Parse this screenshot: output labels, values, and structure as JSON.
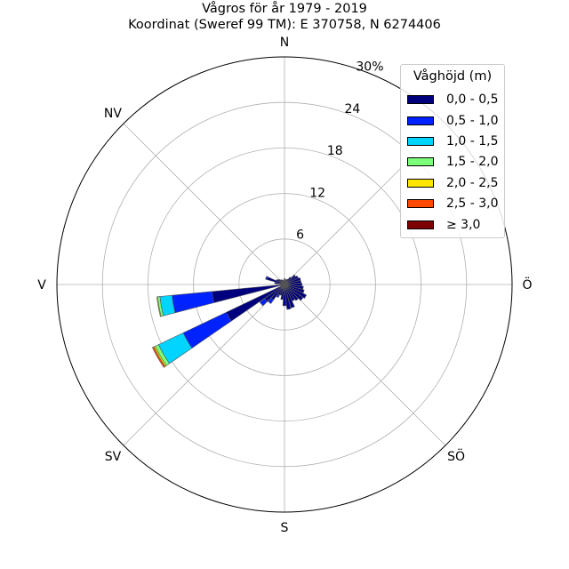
{
  "title": {
    "line1": "Vågros för år 1979 - 2019",
    "line2": "Koordinat (Sweref 99 TM): E 370758, N 6274406"
  },
  "colors": {
    "grid": "#b0b0b0",
    "bar_edge": "#555555"
  },
  "chart_data": {
    "type": "windrose",
    "title": "Vågros för år 1979 - 2019",
    "subtitle": "Koordinat (Sweref 99 TM): E 370758, N 6274406",
    "direction_labels": [
      "N",
      "Ö",
      "S",
      "V",
      "NV",
      "SÖ",
      "SV"
    ],
    "radial_ticks": [
      "6",
      "12",
      "18",
      "24",
      "30%"
    ],
    "radial_tick_values": [
      6,
      12,
      18,
      24,
      30
    ],
    "rmax": 30,
    "legend_title": "Våghöjd (m)",
    "legend_placement": "top-right",
    "bins": [
      {
        "label": "0,0 - 0,5",
        "color": "#00007f"
      },
      {
        "label": "0,5 - 1,0",
        "color": "#0022ff"
      },
      {
        "label": "1,0 - 1,5",
        "color": "#00d4ff"
      },
      {
        "label": "1,5 - 2,0",
        "color": "#7cff79"
      },
      {
        "label": "2,0 - 2,5",
        "color": "#ffe600"
      },
      {
        "label": "2,5 - 3,0",
        "color": "#ff4800"
      },
      {
        "label": "≥ 3,0",
        "color": "#7f0000"
      }
    ],
    "sectors": [
      {
        "direction": 0,
        "values": [
          0.8,
          0,
          0,
          0,
          0,
          0,
          0
        ]
      },
      {
        "direction": 10,
        "values": [
          0.6,
          0,
          0,
          0,
          0,
          0,
          0
        ]
      },
      {
        "direction": 20,
        "values": [
          0.7,
          0,
          0,
          0,
          0,
          0,
          0
        ]
      },
      {
        "direction": 30,
        "values": [
          0.8,
          0,
          0,
          0,
          0,
          0,
          0
        ]
      },
      {
        "direction": 40,
        "values": [
          1.2,
          0,
          0,
          0,
          0,
          0,
          0
        ]
      },
      {
        "direction": 50,
        "values": [
          1.8,
          0,
          0,
          0,
          0,
          0,
          0
        ]
      },
      {
        "direction": 60,
        "values": [
          2.0,
          0,
          0,
          0,
          0,
          0,
          0
        ]
      },
      {
        "direction": 70,
        "values": [
          2.2,
          0,
          0,
          0,
          0,
          0,
          0
        ]
      },
      {
        "direction": 80,
        "values": [
          2.2,
          0,
          0,
          0,
          0,
          0,
          0
        ]
      },
      {
        "direction": 90,
        "values": [
          2.3,
          0,
          0,
          0,
          0,
          0,
          0
        ]
      },
      {
        "direction": 100,
        "values": [
          2.5,
          0,
          0,
          0,
          0,
          0,
          0
        ]
      },
      {
        "direction": 110,
        "values": [
          2.7,
          0,
          0,
          0,
          0,
          0,
          0
        ]
      },
      {
        "direction": 120,
        "values": [
          3.2,
          0,
          0,
          0,
          0,
          0,
          0
        ]
      },
      {
        "direction": 130,
        "values": [
          3.0,
          0,
          0,
          0,
          0,
          0,
          0
        ]
      },
      {
        "direction": 140,
        "values": [
          2.6,
          0,
          0,
          0,
          0,
          0,
          0
        ]
      },
      {
        "direction": 150,
        "values": [
          2.4,
          0,
          0,
          0,
          0,
          0,
          0
        ]
      },
      {
        "direction": 160,
        "values": [
          3.2,
          0,
          0,
          0,
          0,
          0,
          0
        ]
      },
      {
        "direction": 170,
        "values": [
          3.3,
          0,
          0,
          0,
          0,
          0,
          0
        ]
      },
      {
        "direction": 180,
        "values": [
          2.8,
          0,
          0,
          0,
          0,
          0,
          0
        ]
      },
      {
        "direction": 190,
        "values": [
          2.0,
          0,
          0,
          0,
          0,
          0,
          0
        ]
      },
      {
        "direction": 200,
        "values": [
          1.5,
          0,
          0,
          0,
          0,
          0,
          0
        ]
      },
      {
        "direction": 210,
        "values": [
          1.6,
          0.3,
          0,
          0,
          0,
          0,
          0
        ]
      },
      {
        "direction": 220,
        "values": [
          2.5,
          0.6,
          0,
          0,
          0,
          0,
          0
        ]
      },
      {
        "direction": 230,
        "values": [
          3.2,
          0.8,
          0,
          0,
          0,
          0,
          0
        ]
      },
      {
        "direction": 240,
        "values": [
          8.5,
          6.3,
          3.6,
          0.5,
          0.2,
          0.2,
          0
        ]
      },
      {
        "direction": 250,
        "values": [
          0.5,
          0,
          0,
          0,
          0,
          0,
          0
        ]
      },
      {
        "direction": 260,
        "values": [
          9.6,
          5.3,
          1.6,
          0.3,
          0.1,
          0,
          0
        ]
      },
      {
        "direction": 270,
        "values": [
          0.6,
          0,
          0,
          0,
          0,
          0,
          0
        ]
      },
      {
        "direction": 280,
        "values": [
          1.3,
          0,
          0,
          0,
          0,
          0,
          0
        ]
      },
      {
        "direction": 290,
        "values": [
          2.4,
          0.2,
          0,
          0,
          0,
          0,
          0
        ]
      },
      {
        "direction": 300,
        "values": [
          1.2,
          0,
          0,
          0,
          0,
          0,
          0
        ]
      },
      {
        "direction": 310,
        "values": [
          1.0,
          0,
          0,
          0,
          0,
          0,
          0
        ]
      },
      {
        "direction": 320,
        "values": [
          0.8,
          0,
          0,
          0,
          0,
          0,
          0
        ]
      },
      {
        "direction": 330,
        "values": [
          0.7,
          0,
          0,
          0,
          0,
          0,
          0
        ]
      },
      {
        "direction": 340,
        "values": [
          0.6,
          0,
          0,
          0,
          0,
          0,
          0
        ]
      },
      {
        "direction": 350,
        "values": [
          0.5,
          0,
          0,
          0,
          0,
          0,
          0
        ]
      }
    ]
  }
}
